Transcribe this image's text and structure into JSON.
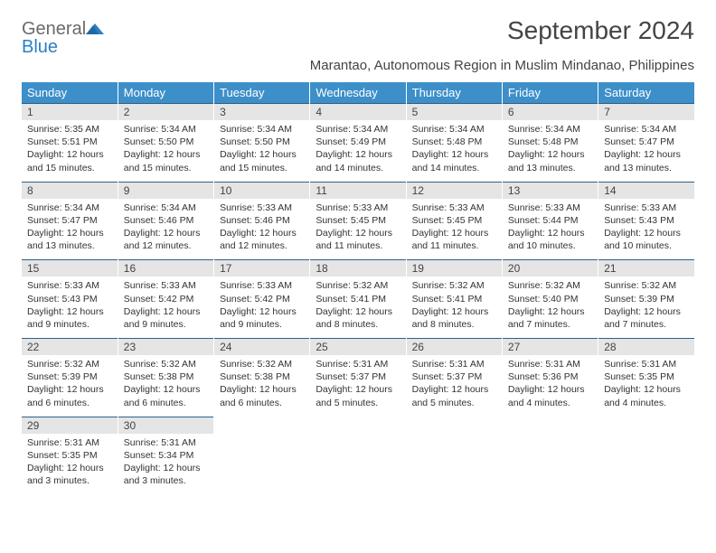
{
  "logo": {
    "word1": "General",
    "word2": "Blue"
  },
  "title": "September 2024",
  "subtitle": "Marantao, Autonomous Region in Muslim Mindanao, Philippines",
  "colors": {
    "header_bg": "#3d8fc9",
    "header_text": "#ffffff",
    "daynum_bg": "#e5e5e5",
    "border_top": "#2f5f85",
    "logo_gray": "#6a6a6a",
    "logo_blue": "#2b7fc2"
  },
  "weekdays": [
    "Sunday",
    "Monday",
    "Tuesday",
    "Wednesday",
    "Thursday",
    "Friday",
    "Saturday"
  ],
  "weeks": [
    {
      "days": [
        {
          "num": "1",
          "sunrise": "Sunrise: 5:35 AM",
          "sunset": "Sunset: 5:51 PM",
          "day1": "Daylight: 12 hours",
          "day2": "and 15 minutes."
        },
        {
          "num": "2",
          "sunrise": "Sunrise: 5:34 AM",
          "sunset": "Sunset: 5:50 PM",
          "day1": "Daylight: 12 hours",
          "day2": "and 15 minutes."
        },
        {
          "num": "3",
          "sunrise": "Sunrise: 5:34 AM",
          "sunset": "Sunset: 5:50 PM",
          "day1": "Daylight: 12 hours",
          "day2": "and 15 minutes."
        },
        {
          "num": "4",
          "sunrise": "Sunrise: 5:34 AM",
          "sunset": "Sunset: 5:49 PM",
          "day1": "Daylight: 12 hours",
          "day2": "and 14 minutes."
        },
        {
          "num": "5",
          "sunrise": "Sunrise: 5:34 AM",
          "sunset": "Sunset: 5:48 PM",
          "day1": "Daylight: 12 hours",
          "day2": "and 14 minutes."
        },
        {
          "num": "6",
          "sunrise": "Sunrise: 5:34 AM",
          "sunset": "Sunset: 5:48 PM",
          "day1": "Daylight: 12 hours",
          "day2": "and 13 minutes."
        },
        {
          "num": "7",
          "sunrise": "Sunrise: 5:34 AM",
          "sunset": "Sunset: 5:47 PM",
          "day1": "Daylight: 12 hours",
          "day2": "and 13 minutes."
        }
      ]
    },
    {
      "days": [
        {
          "num": "8",
          "sunrise": "Sunrise: 5:34 AM",
          "sunset": "Sunset: 5:47 PM",
          "day1": "Daylight: 12 hours",
          "day2": "and 13 minutes."
        },
        {
          "num": "9",
          "sunrise": "Sunrise: 5:34 AM",
          "sunset": "Sunset: 5:46 PM",
          "day1": "Daylight: 12 hours",
          "day2": "and 12 minutes."
        },
        {
          "num": "10",
          "sunrise": "Sunrise: 5:33 AM",
          "sunset": "Sunset: 5:46 PM",
          "day1": "Daylight: 12 hours",
          "day2": "and 12 minutes."
        },
        {
          "num": "11",
          "sunrise": "Sunrise: 5:33 AM",
          "sunset": "Sunset: 5:45 PM",
          "day1": "Daylight: 12 hours",
          "day2": "and 11 minutes."
        },
        {
          "num": "12",
          "sunrise": "Sunrise: 5:33 AM",
          "sunset": "Sunset: 5:45 PM",
          "day1": "Daylight: 12 hours",
          "day2": "and 11 minutes."
        },
        {
          "num": "13",
          "sunrise": "Sunrise: 5:33 AM",
          "sunset": "Sunset: 5:44 PM",
          "day1": "Daylight: 12 hours",
          "day2": "and 10 minutes."
        },
        {
          "num": "14",
          "sunrise": "Sunrise: 5:33 AM",
          "sunset": "Sunset: 5:43 PM",
          "day1": "Daylight: 12 hours",
          "day2": "and 10 minutes."
        }
      ]
    },
    {
      "days": [
        {
          "num": "15",
          "sunrise": "Sunrise: 5:33 AM",
          "sunset": "Sunset: 5:43 PM",
          "day1": "Daylight: 12 hours",
          "day2": "and 9 minutes."
        },
        {
          "num": "16",
          "sunrise": "Sunrise: 5:33 AM",
          "sunset": "Sunset: 5:42 PM",
          "day1": "Daylight: 12 hours",
          "day2": "and 9 minutes."
        },
        {
          "num": "17",
          "sunrise": "Sunrise: 5:33 AM",
          "sunset": "Sunset: 5:42 PM",
          "day1": "Daylight: 12 hours",
          "day2": "and 9 minutes."
        },
        {
          "num": "18",
          "sunrise": "Sunrise: 5:32 AM",
          "sunset": "Sunset: 5:41 PM",
          "day1": "Daylight: 12 hours",
          "day2": "and 8 minutes."
        },
        {
          "num": "19",
          "sunrise": "Sunrise: 5:32 AM",
          "sunset": "Sunset: 5:41 PM",
          "day1": "Daylight: 12 hours",
          "day2": "and 8 minutes."
        },
        {
          "num": "20",
          "sunrise": "Sunrise: 5:32 AM",
          "sunset": "Sunset: 5:40 PM",
          "day1": "Daylight: 12 hours",
          "day2": "and 7 minutes."
        },
        {
          "num": "21",
          "sunrise": "Sunrise: 5:32 AM",
          "sunset": "Sunset: 5:39 PM",
          "day1": "Daylight: 12 hours",
          "day2": "and 7 minutes."
        }
      ]
    },
    {
      "days": [
        {
          "num": "22",
          "sunrise": "Sunrise: 5:32 AM",
          "sunset": "Sunset: 5:39 PM",
          "day1": "Daylight: 12 hours",
          "day2": "and 6 minutes."
        },
        {
          "num": "23",
          "sunrise": "Sunrise: 5:32 AM",
          "sunset": "Sunset: 5:38 PM",
          "day1": "Daylight: 12 hours",
          "day2": "and 6 minutes."
        },
        {
          "num": "24",
          "sunrise": "Sunrise: 5:32 AM",
          "sunset": "Sunset: 5:38 PM",
          "day1": "Daylight: 12 hours",
          "day2": "and 6 minutes."
        },
        {
          "num": "25",
          "sunrise": "Sunrise: 5:31 AM",
          "sunset": "Sunset: 5:37 PM",
          "day1": "Daylight: 12 hours",
          "day2": "and 5 minutes."
        },
        {
          "num": "26",
          "sunrise": "Sunrise: 5:31 AM",
          "sunset": "Sunset: 5:37 PM",
          "day1": "Daylight: 12 hours",
          "day2": "and 5 minutes."
        },
        {
          "num": "27",
          "sunrise": "Sunrise: 5:31 AM",
          "sunset": "Sunset: 5:36 PM",
          "day1": "Daylight: 12 hours",
          "day2": "and 4 minutes."
        },
        {
          "num": "28",
          "sunrise": "Sunrise: 5:31 AM",
          "sunset": "Sunset: 5:35 PM",
          "day1": "Daylight: 12 hours",
          "day2": "and 4 minutes."
        }
      ]
    },
    {
      "days": [
        {
          "num": "29",
          "sunrise": "Sunrise: 5:31 AM",
          "sunset": "Sunset: 5:35 PM",
          "day1": "Daylight: 12 hours",
          "day2": "and 3 minutes."
        },
        {
          "num": "30",
          "sunrise": "Sunrise: 5:31 AM",
          "sunset": "Sunset: 5:34 PM",
          "day1": "Daylight: 12 hours",
          "day2": "and 3 minutes."
        },
        {
          "empty": true
        },
        {
          "empty": true
        },
        {
          "empty": true
        },
        {
          "empty": true
        },
        {
          "empty": true
        }
      ]
    }
  ]
}
